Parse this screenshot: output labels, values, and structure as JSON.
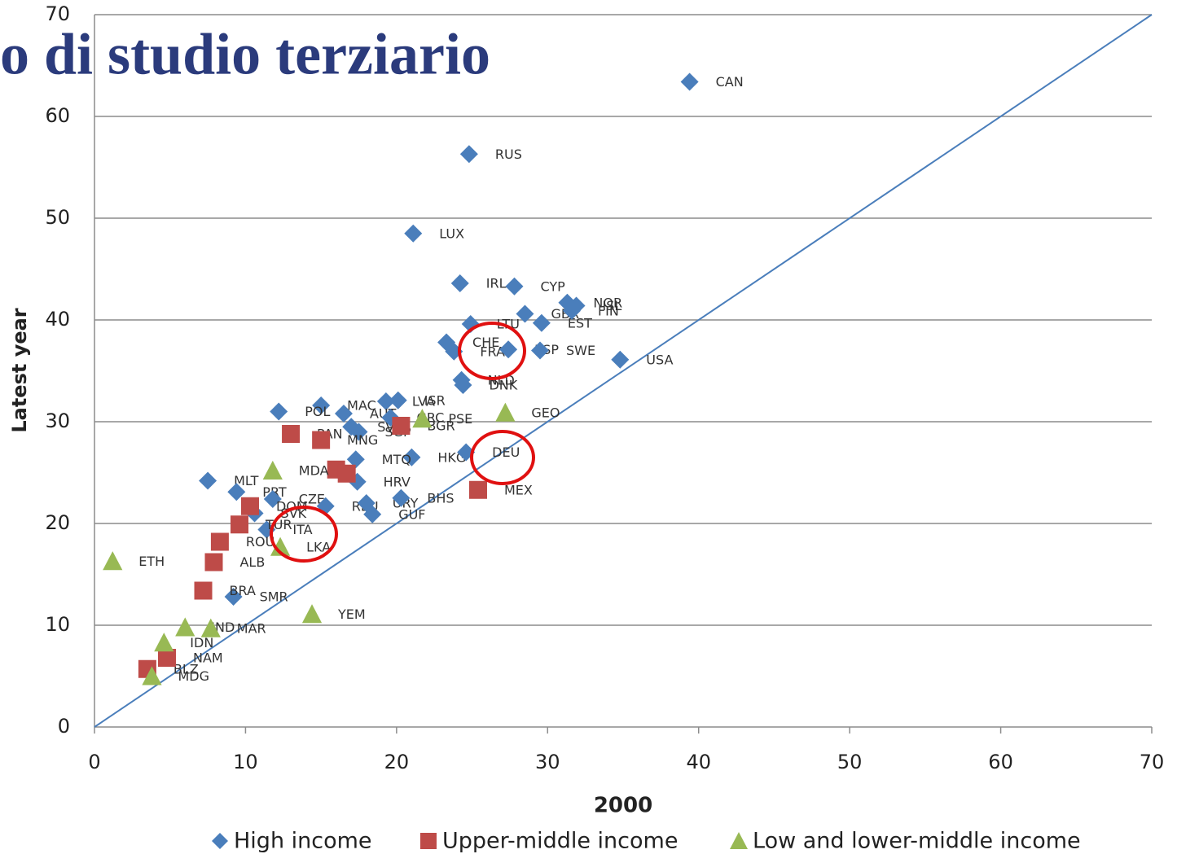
{
  "chart_data": {
    "type": "scatter",
    "title": "o di studio terziario",
    "x_label": "2000",
    "y_label": "Latest year",
    "xlim": [
      0,
      70
    ],
    "ylim": [
      0,
      70
    ],
    "xticks": [
      0,
      10,
      20,
      30,
      40,
      50,
      60,
      70
    ],
    "yticks": [
      0,
      10,
      20,
      30,
      40,
      50,
      60,
      70
    ],
    "grid": true,
    "legend": "bottom",
    "series": [
      {
        "name": "High income",
        "color": "#4a7ebb",
        "marker": "diamond",
        "x": [
          39.4,
          24.8,
          21.1,
          24.2,
          27.8,
          28.5,
          29.6,
          31.3,
          31.9,
          31.6,
          24.9,
          23.3,
          23.8,
          27.4,
          29.5,
          34.8,
          24.3,
          24.4,
          19.3,
          20.1,
          15.0,
          12.2,
          16.5,
          17.0,
          19.6,
          17.5,
          21.0,
          24.6,
          17.3,
          17.4,
          7.5,
          9.4,
          11.8,
          10.6,
          15.3,
          18.0,
          18.4,
          20.3,
          11.4,
          9.2
        ],
        "values": [
          63.4,
          56.3,
          48.5,
          43.6,
          43.3,
          40.6,
          39.7,
          41.7,
          41.4,
          40.9,
          39.6,
          37.8,
          36.9,
          37.1,
          37.0,
          36.1,
          34.1,
          33.6,
          32.0,
          32.1,
          31.6,
          31.0,
          30.8,
          29.5,
          30.4,
          29.0,
          26.5,
          27.0,
          26.3,
          24.1,
          24.2,
          23.1,
          22.4,
          21.0,
          21.7,
          22.0,
          20.9,
          22.5,
          19.4,
          12.8
        ],
        "labels": [
          "CAN",
          "RUS",
          "LUX",
          "IRL",
          "CYP",
          "GBR",
          "EST",
          "NOR",
          "ISL",
          "FIN",
          "LTU",
          "CHE",
          "FRA",
          "ESP",
          "SWE",
          "USA",
          "NLD",
          "DNK",
          "LVA",
          "ISR",
          "MAC",
          "POL",
          "AUT",
          "SVN",
          "GRC",
          "SGP",
          "HKG",
          "DEU",
          "MTQ",
          "HRV",
          "MLT",
          "PRT",
          "CZE",
          "SVK",
          "REU",
          "URY",
          "GUF",
          "BHS",
          "ITA",
          "SMR"
        ]
      },
      {
        "name": "Upper-middle income",
        "color": "#be4b48",
        "marker": "square",
        "x": [
          13.0,
          15.0,
          20.3,
          16.0,
          16.7,
          25.4,
          10.3,
          9.6,
          8.3,
          7.9,
          7.2,
          3.5,
          4.8
        ],
        "values": [
          28.8,
          28.2,
          29.6,
          25.3,
          24.9,
          23.3,
          21.7,
          19.9,
          18.2,
          16.2,
          13.4,
          5.7,
          6.8
        ],
        "labels": [
          "PAN",
          "MNG",
          "BGR",
          null,
          null,
          "MEX",
          "DOM",
          "TUR",
          "ROU",
          "ALB",
          "BRA",
          "BLZ",
          "NAM"
        ]
      },
      {
        "name": "Low and lower-middle income",
        "color": "#98b954",
        "marker": "triangle",
        "x": [
          27.2,
          21.7,
          11.8,
          1.2,
          12.3,
          14.4,
          6.0,
          7.7,
          4.6,
          3.8
        ],
        "values": [
          30.9,
          30.3,
          25.2,
          16.3,
          17.7,
          11.1,
          9.8,
          9.7,
          8.3,
          5.0
        ],
        "labels": [
          "GEO",
          "PSE",
          "MDA",
          "ETH",
          "LKA",
          "YEM",
          "IND",
          "MAR",
          "IDN",
          "MDG"
        ]
      }
    ]
  }
}
